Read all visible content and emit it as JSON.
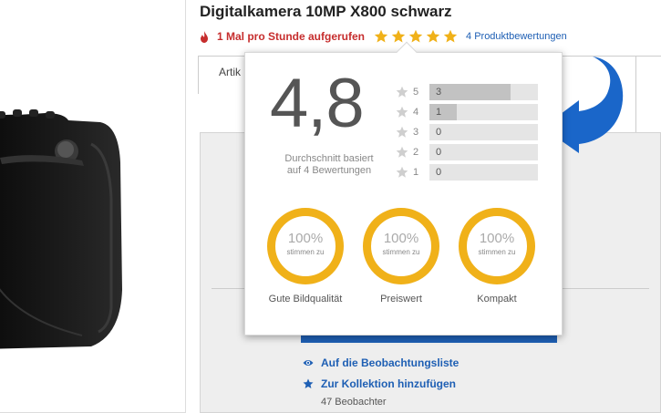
{
  "product": {
    "title": "Digitalkamera 10MP X800 schwarz",
    "views_text": "1 Mal pro Stunde aufgerufen",
    "stars": 5,
    "rating_link": "4 Produktbewertungen"
  },
  "tabs": {
    "first": "Artik"
  },
  "popup": {
    "average": "4,8",
    "average_text": "Durchschnitt basiert auf 4 Bewertungen",
    "distribution": [
      {
        "stars": "5",
        "count": "3",
        "fraction": 0.75
      },
      {
        "stars": "4",
        "count": "1",
        "fraction": 0.25
      },
      {
        "stars": "3",
        "count": "0",
        "fraction": 0
      },
      {
        "stars": "2",
        "count": "0",
        "fraction": 0
      },
      {
        "stars": "1",
        "count": "0",
        "fraction": 0
      }
    ],
    "attributes": [
      {
        "percent": "100%",
        "agree": "stimmen zu",
        "label": "Gute Bildqualität",
        "fraction": 1.0
      },
      {
        "percent": "100%",
        "agree": "stimmen zu",
        "label": "Preiswert",
        "fraction": 1.0
      },
      {
        "percent": "100%",
        "agree": "stimmen zu",
        "label": "Kompakt",
        "fraction": 1.0
      }
    ]
  },
  "actions": {
    "watchlist": "Auf die Beobachtungsliste",
    "collection": "Zur Kollektion hinzufügen",
    "watchers": "47 Beobachter"
  },
  "colors": {
    "accent_blue": "#1e5fb4",
    "views_red": "#c62d2d",
    "star_gold": "#f0b119",
    "arrow_blue": "#1a66c9"
  },
  "icons": {
    "flame": "flame-icon",
    "star": "star-icon",
    "eye": "eye-icon",
    "star_small": "star-small-icon",
    "arrow": "curved-arrow-icon"
  }
}
